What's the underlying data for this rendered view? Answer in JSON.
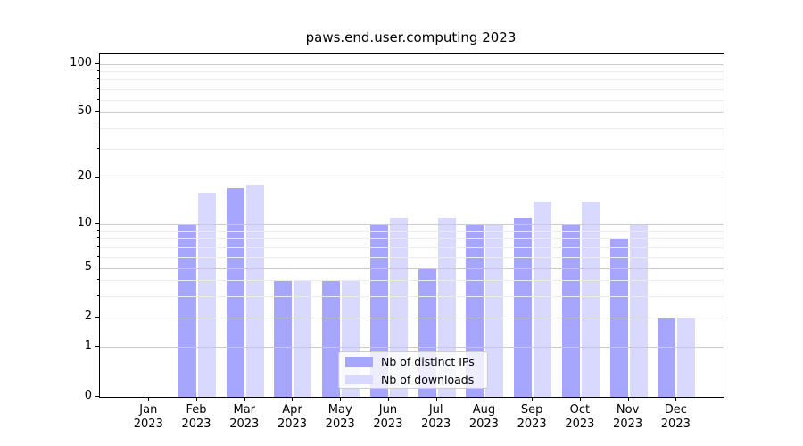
{
  "title": "paws.end.user.computing 2023",
  "chart_data": {
    "type": "bar",
    "title": "paws.end.user.computing 2023",
    "categories": [
      "Jan 2023",
      "Feb 2023",
      "Mar 2023",
      "Apr 2023",
      "May 2023",
      "Jun 2023",
      "Jul 2023",
      "Aug 2023",
      "Sep 2023",
      "Oct 2023",
      "Nov 2023",
      "Dec 2023"
    ],
    "series": [
      {
        "name": "Nb of distinct IPs",
        "color": "#a6a6ff",
        "values": [
          0,
          10,
          17,
          4,
          4,
          10,
          5,
          10,
          11,
          10,
          8,
          2
        ]
      },
      {
        "name": "Nb of downloads",
        "color": "#d9d9ff",
        "values": [
          0,
          16,
          18,
          4,
          4,
          11,
          11,
          10,
          14,
          14,
          10,
          2
        ]
      }
    ],
    "xlabel": "",
    "ylabel": "",
    "y_scale": "symlog",
    "ylim": [
      0,
      115
    ],
    "y_axis": {
      "major_ticks": [
        0,
        1,
        2,
        5,
        10,
        20,
        50,
        100
      ],
      "minor_ticks": [
        3,
        4,
        6,
        7,
        8,
        9,
        30,
        40,
        60,
        70,
        80,
        90
      ]
    },
    "grid": true,
    "legend_position": "lower center"
  },
  "legend": {
    "entries": [
      {
        "label": "Nb of distinct IPs",
        "color": "#a6a6ff"
      },
      {
        "label": "Nb of downloads",
        "color": "#d9d9ff"
      }
    ]
  }
}
